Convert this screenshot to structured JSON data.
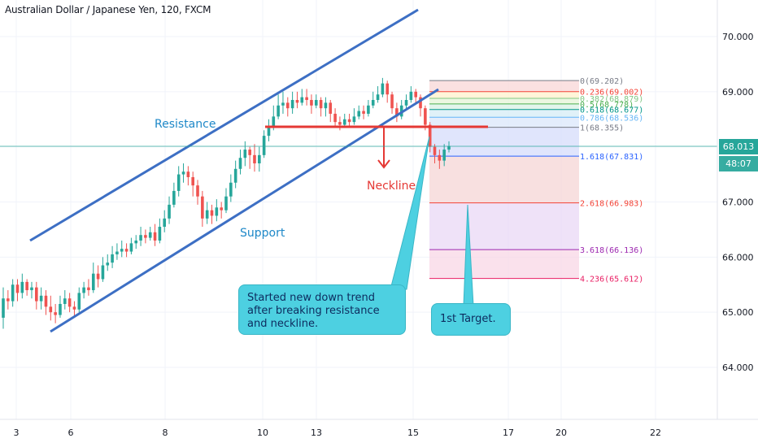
{
  "header": {
    "title": "Australian Dollar / Japanese Yen, 120, FXCM"
  },
  "annotations": {
    "resistance": "Resistance",
    "support": "Support",
    "neckline": "Neckline",
    "callout_trend": "Started new down trend after breaking resistance and neckline.",
    "callout_target": "1st Target."
  },
  "price_axis": {
    "current_price": "68.013",
    "countdown": "48:07"
  },
  "colors": {
    "up": "#26a69a",
    "down": "#ef5350",
    "channel": "#3d6fc4",
    "neckline": "#e53935",
    "callout": "#4dd0e1",
    "current_price": "#26a69a",
    "countdown": "#26a69a"
  },
  "chart_data": {
    "type": "candlestick",
    "y_ticks": [
      "70.000",
      "69.000",
      "68.000",
      "67.000",
      "66.000",
      "65.000",
      "64.000"
    ],
    "y_tick_values": [
      70,
      69,
      68,
      67,
      66,
      65,
      64
    ],
    "ylim": [
      63.0,
      70.7
    ],
    "x_ticks": [
      {
        "label": "3",
        "day": 3
      },
      {
        "label": "6",
        "day": 6
      },
      {
        "label": "8",
        "day": 8
      },
      {
        "label": "10",
        "day": 10
      },
      {
        "label": "13",
        "day": 13
      },
      {
        "label": "15",
        "day": 15
      },
      {
        "label": "17",
        "day": 17
      },
      {
        "label": "20",
        "day": 20
      },
      {
        "label": "22",
        "day": 22
      }
    ],
    "candles": [
      [
        64.9,
        65.25,
        64.7,
        65.45
      ],
      [
        65.25,
        65.2,
        65.05,
        65.4
      ],
      [
        65.2,
        65.5,
        65.1,
        65.6
      ],
      [
        65.5,
        65.35,
        65.2,
        65.6
      ],
      [
        65.35,
        65.55,
        65.25,
        65.7
      ],
      [
        65.55,
        65.4,
        65.3,
        65.6
      ],
      [
        65.4,
        65.45,
        65.25,
        65.55
      ],
      [
        65.45,
        65.2,
        65.05,
        65.55
      ],
      [
        65.2,
        65.3,
        65.05,
        65.45
      ],
      [
        65.3,
        65.1,
        64.95,
        65.4
      ],
      [
        65.1,
        65.0,
        64.85,
        65.3
      ],
      [
        65.0,
        64.95,
        64.8,
        65.15
      ],
      [
        64.95,
        65.15,
        64.9,
        65.3
      ],
      [
        65.15,
        65.25,
        65.05,
        65.4
      ],
      [
        65.25,
        65.1,
        65.0,
        65.35
      ],
      [
        65.1,
        65.05,
        64.9,
        65.2
      ],
      [
        65.05,
        65.35,
        65.0,
        65.45
      ],
      [
        65.35,
        65.45,
        65.25,
        65.55
      ],
      [
        65.45,
        65.4,
        65.3,
        65.6
      ],
      [
        65.4,
        65.7,
        65.35,
        65.9
      ],
      [
        65.7,
        65.6,
        65.45,
        65.85
      ],
      [
        65.6,
        65.85,
        65.55,
        66.0
      ],
      [
        65.85,
        65.9,
        65.75,
        66.05
      ],
      [
        65.9,
        66.05,
        65.8,
        66.2
      ],
      [
        66.05,
        66.1,
        65.95,
        66.25
      ],
      [
        66.1,
        66.15,
        66.0,
        66.3
      ],
      [
        66.15,
        66.1,
        66.0,
        66.25
      ],
      [
        66.1,
        66.25,
        66.05,
        66.35
      ],
      [
        66.25,
        66.3,
        66.15,
        66.4
      ],
      [
        66.3,
        66.4,
        66.2,
        66.55
      ],
      [
        66.4,
        66.35,
        66.25,
        66.5
      ],
      [
        66.35,
        66.45,
        66.3,
        66.55
      ],
      [
        66.45,
        66.3,
        66.2,
        66.6
      ],
      [
        66.3,
        66.55,
        66.25,
        66.7
      ],
      [
        66.55,
        66.7,
        66.45,
        66.85
      ],
      [
        66.7,
        66.95,
        66.6,
        67.1
      ],
      [
        66.95,
        67.2,
        66.9,
        67.35
      ],
      [
        67.2,
        67.5,
        67.1,
        67.65
      ],
      [
        67.5,
        67.55,
        67.35,
        67.7
      ],
      [
        67.55,
        67.45,
        67.3,
        67.65
      ],
      [
        67.45,
        67.3,
        67.1,
        67.55
      ],
      [
        67.3,
        67.1,
        66.95,
        67.4
      ],
      [
        67.1,
        66.7,
        66.55,
        67.2
      ],
      [
        66.7,
        66.85,
        66.6,
        67.0
      ],
      [
        66.85,
        66.75,
        66.6,
        66.95
      ],
      [
        66.75,
        66.9,
        66.65,
        67.05
      ],
      [
        66.9,
        66.85,
        66.7,
        67.0
      ],
      [
        66.85,
        67.1,
        66.8,
        67.25
      ],
      [
        67.1,
        67.35,
        67.0,
        67.5
      ],
      [
        67.35,
        67.6,
        67.25,
        67.75
      ],
      [
        67.6,
        67.8,
        67.5,
        67.95
      ],
      [
        67.8,
        67.95,
        67.65,
        68.1
      ],
      [
        67.95,
        67.85,
        67.6,
        68.0
      ],
      [
        67.85,
        67.7,
        67.55,
        68.05
      ],
      [
        67.7,
        67.85,
        67.55,
        68.0
      ],
      [
        67.85,
        68.2,
        67.8,
        68.3
      ],
      [
        68.2,
        68.35,
        68.1,
        68.5
      ],
      [
        68.35,
        68.55,
        68.3,
        68.75
      ],
      [
        68.55,
        68.75,
        68.5,
        68.95
      ],
      [
        68.75,
        68.8,
        68.6,
        69.0
      ],
      [
        68.8,
        68.7,
        68.55,
        68.9
      ],
      [
        68.7,
        68.85,
        68.6,
        69.0
      ],
      [
        68.85,
        68.8,
        68.7,
        69.0
      ],
      [
        68.8,
        68.9,
        68.75,
        69.05
      ],
      [
        68.9,
        68.85,
        68.75,
        69.05
      ],
      [
        68.85,
        68.75,
        68.6,
        68.95
      ],
      [
        68.75,
        68.85,
        68.7,
        68.95
      ],
      [
        68.85,
        68.7,
        68.55,
        68.9
      ],
      [
        68.7,
        68.8,
        68.55,
        68.9
      ],
      [
        68.8,
        68.6,
        68.45,
        68.85
      ],
      [
        68.6,
        68.45,
        68.35,
        68.7
      ],
      [
        68.45,
        68.4,
        68.3,
        68.55
      ],
      [
        68.4,
        68.5,
        68.35,
        68.6
      ],
      [
        68.5,
        68.45,
        68.35,
        68.6
      ],
      [
        68.45,
        68.55,
        68.4,
        68.7
      ],
      [
        68.55,
        68.65,
        68.5,
        68.75
      ],
      [
        68.65,
        68.6,
        68.5,
        68.75
      ],
      [
        68.6,
        68.75,
        68.55,
        68.85
      ],
      [
        68.75,
        68.85,
        68.7,
        69.0
      ],
      [
        68.85,
        68.95,
        68.8,
        69.1
      ],
      [
        68.95,
        69.15,
        68.9,
        69.25
      ],
      [
        69.15,
        68.95,
        68.8,
        69.2
      ],
      [
        68.95,
        68.7,
        68.6,
        69.0
      ],
      [
        68.7,
        68.55,
        68.45,
        68.8
      ],
      [
        68.55,
        68.75,
        68.5,
        68.85
      ],
      [
        68.75,
        68.85,
        68.7,
        68.95
      ],
      [
        68.85,
        69.0,
        68.8,
        69.1
      ],
      [
        69.0,
        68.9,
        68.8,
        69.05
      ],
      [
        68.9,
        68.7,
        68.55,
        68.95
      ],
      [
        68.7,
        68.4,
        68.3,
        68.75
      ],
      [
        68.4,
        68.0,
        67.9,
        68.45
      ],
      [
        68.0,
        67.85,
        67.7,
        68.05
      ],
      [
        67.85,
        67.75,
        67.6,
        67.95
      ],
      [
        67.75,
        67.95,
        67.65,
        68.05
      ],
      [
        67.95,
        68.013,
        67.9,
        68.1
      ]
    ],
    "fibonacci": [
      {
        "label": "0(69.202)",
        "value": 69.202,
        "color": "#787b86"
      },
      {
        "label": "0.236(69.002)",
        "value": 69.002,
        "color": "#f44336"
      },
      {
        "label": "0.382(68.879)",
        "value": 68.879,
        "color": "#81c784"
      },
      {
        "label": "0.5(68.778)",
        "value": 68.778,
        "color": "#4caf50"
      },
      {
        "label": "0.618(68.677)",
        "value": 68.677,
        "color": "#009688"
      },
      {
        "label": "0.786(68.536)",
        "value": 68.536,
        "color": "#64b5f6"
      },
      {
        "label": "1(68.355)",
        "value": 68.355,
        "color": "#787b86"
      },
      {
        "label": "1.618(67.831)",
        "value": 67.831,
        "color": "#2962ff"
      },
      {
        "label": "2.618(66.983)",
        "value": 66.983,
        "color": "#f44336"
      },
      {
        "label": "3.618(66.136)",
        "value": 66.136,
        "color": "#9c27b0"
      },
      {
        "label": "4.236(65.612)",
        "value": 65.612,
        "color": "#e91e63"
      }
    ],
    "neckline_price": 68.355
  }
}
